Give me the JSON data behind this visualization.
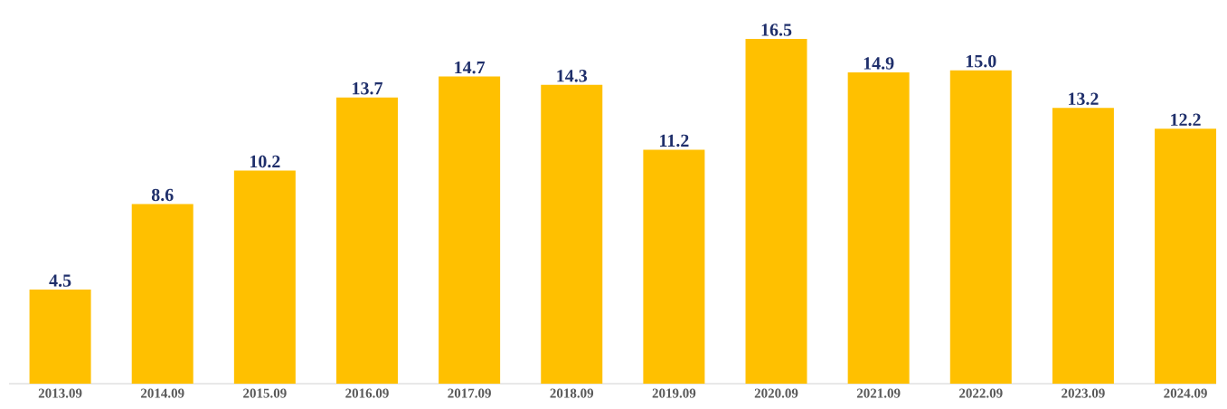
{
  "chart_data": {
    "type": "bar",
    "categories": [
      "2013.09",
      "2014.09",
      "2015.09",
      "2016.09",
      "2017.09",
      "2018.09",
      "2019.09",
      "2020.09",
      "2021.09",
      "2022.09",
      "2023.09",
      "2024.09"
    ],
    "values": [
      4.5,
      8.6,
      10.2,
      13.7,
      14.7,
      14.3,
      11.2,
      16.5,
      14.9,
      15.0,
      13.2,
      12.2
    ],
    "value_labels": [
      "4.5",
      "8.6",
      "10.2",
      "13.7",
      "14.7",
      "14.3",
      "11.2",
      "16.5",
      "14.9",
      "15.0",
      "13.2",
      "12.2"
    ],
    "color": "#ffc000"
  }
}
